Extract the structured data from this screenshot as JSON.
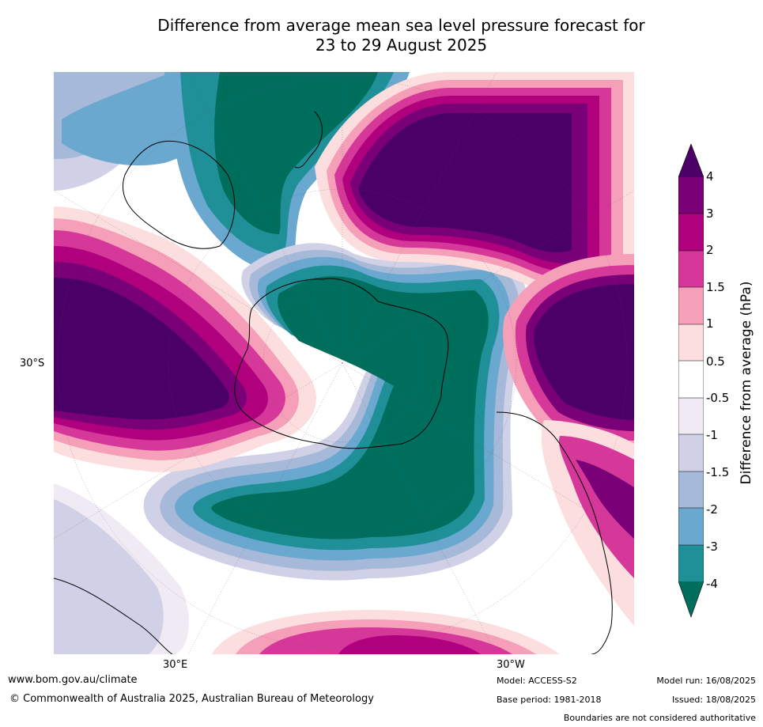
{
  "title_line1": "Difference from average mean sea level pressure forecast for",
  "title_line2": "23 to 29 August 2025",
  "map": {
    "latitude_label": "30°S",
    "longitude_labels": [
      "30°E",
      "30°W"
    ],
    "projection": "south-polar stereographic",
    "coastline_color": "#000000",
    "borders_color": "#888888"
  },
  "colorbar": {
    "title": "Difference from average (hPa)",
    "ticks": [
      "4",
      "3",
      "2",
      "1.5",
      "1",
      "0.5",
      "-0.5",
      "-1",
      "-1.5",
      "-2",
      "-3",
      "-4"
    ],
    "colors": [
      "#4b0068",
      "#7a0077",
      "#b0007e",
      "#d6389a",
      "#f5a0b8",
      "#fddede",
      "#ffffff",
      "#f0eaf4",
      "#d0d0e6",
      "#a6b9d8",
      "#6aa8d0",
      "#1f9098",
      "#006e5c"
    ],
    "extend": "both"
  },
  "footer": {
    "url": "www.bom.gov.au/climate",
    "copyright": "© Commonwealth of Australia 2025, Australian Bureau of Meteorology",
    "model": "Model: ACCESS-S2",
    "base_period": "Base period: 1981-2018",
    "model_run": "Model run: 16/08/2025",
    "issued": "Issued: 18/08/2025",
    "disclaimer": "Boundaries are not considered authoritative"
  }
}
